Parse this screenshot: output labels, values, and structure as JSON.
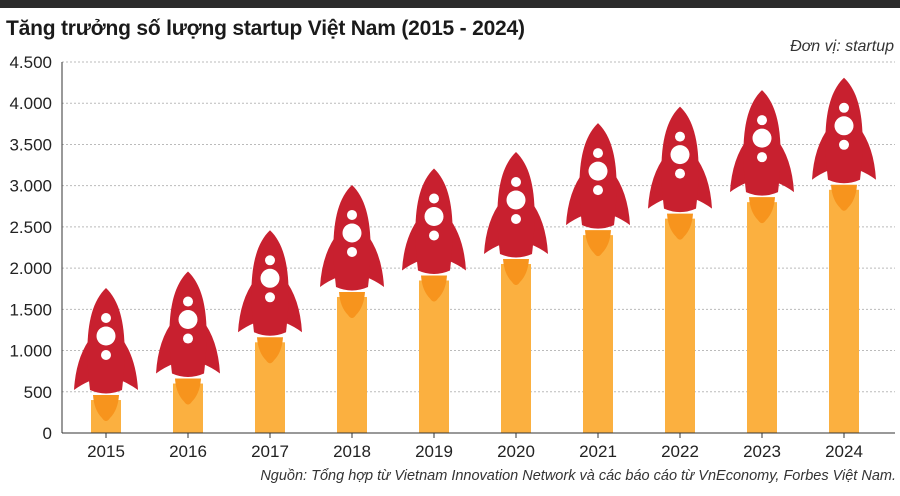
{
  "header": {
    "title": "Tăng trưởng số lượng startup Việt Nam (2015 - 2024)",
    "unit": "Đơn vị: startup"
  },
  "footer": {
    "source": "Nguồn: Tổng hợp từ Vietnam Innovation Network và các báo cáo từ VnEconomy, Forbes Việt Nam."
  },
  "colors": {
    "bar": "#FBB040",
    "rocket": "#C8202F",
    "flame": "#F7941D",
    "window": "#FFFFFF",
    "grid": "#BBBBBB",
    "axis": "#333333"
  },
  "chart_data": {
    "type": "bar",
    "title": "Tăng trưởng số lượng startup Việt Nam (2015 - 2024)",
    "ylabel": "Đơn vị: startup",
    "xlabel": "",
    "ylim": [
      0,
      4500
    ],
    "grid": true,
    "categories": [
      "2015",
      "2016",
      "2017",
      "2018",
      "2019",
      "2020",
      "2021",
      "2022",
      "2023",
      "2024"
    ],
    "values": [
      400,
      600,
      1100,
      1650,
      1850,
      2050,
      2400,
      2600,
      2800,
      2950
    ],
    "yticks": [
      0,
      500,
      1000,
      1500,
      2000,
      2500,
      3000,
      3500,
      4000,
      4500
    ],
    "ytick_labels": [
      "0",
      "500",
      "1.000",
      "1.500",
      "2.000",
      "2.500",
      "3.000",
      "3.500",
      "4.000",
      "4.500"
    ]
  }
}
